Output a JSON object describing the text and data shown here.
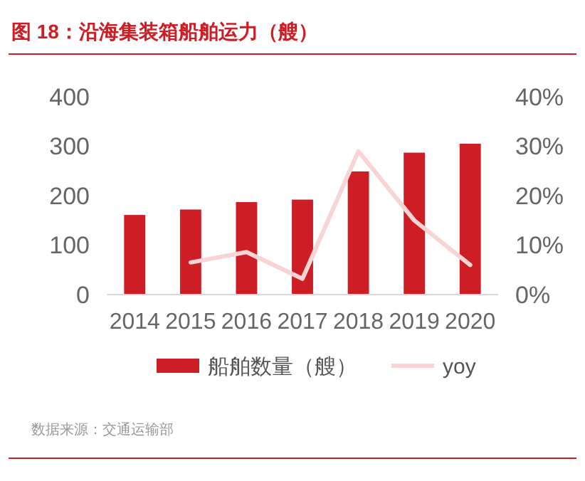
{
  "chart_data": {
    "type": "bar",
    "title": "图 18：沿海集装箱船舶运力（艘）",
    "categories": [
      "2014",
      "2015",
      "2016",
      "2017",
      "2018",
      "2019",
      "2020"
    ],
    "series": [
      {
        "name": "船舶数量（艘）",
        "color": "#cc1e24",
        "values": [
          161,
          172,
          187,
          192,
          249,
          287,
          305
        ]
      },
      {
        "name": "yoy",
        "type": "line",
        "axis": "y2",
        "color": "#f8d4d4",
        "values": [
          null,
          6.5,
          8.6,
          3.2,
          29,
          15,
          6
        ]
      }
    ],
    "ylim": [
      0,
      400
    ],
    "yticks": [
      0,
      100,
      200,
      300,
      400
    ],
    "y2lim": [
      0,
      40
    ],
    "y2ticks": [
      {
        "value": 0,
        "label": "0%"
      },
      {
        "value": 10,
        "label": "10%"
      },
      {
        "value": 20,
        "label": "20%"
      },
      {
        "value": 30,
        "label": "30%"
      },
      {
        "value": 40,
        "label": "40%"
      }
    ],
    "legend": "bottom",
    "grid": false,
    "annotations": [
      "数据来源：交通运输部"
    ]
  }
}
